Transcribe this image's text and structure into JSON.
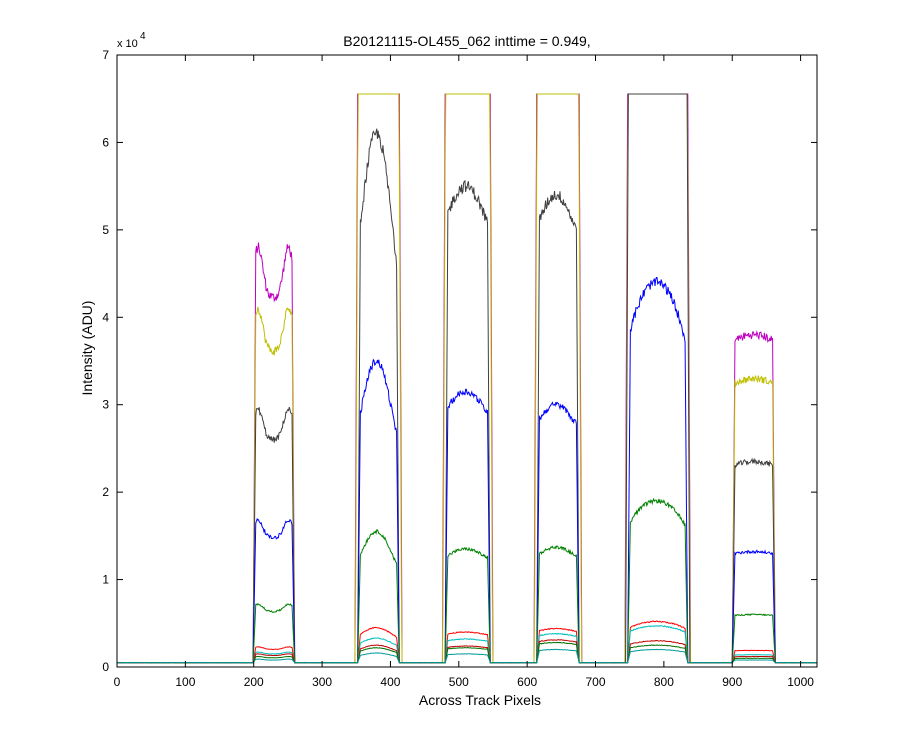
{
  "chart_data": {
    "type": "line",
    "title": "B20121115-OL455_062 inttime = 0.949,",
    "xlabel": "Across Track Pixels",
    "ylabel": "Intensity (ADU)",
    "y_multiplier_label": "x 10",
    "y_multiplier_exponent": "4",
    "xlim": [
      0,
      1024
    ],
    "ylim": [
      0,
      70000
    ],
    "xticks": [
      0,
      100,
      200,
      300,
      400,
      500,
      600,
      700,
      800,
      900,
      1000
    ],
    "xtick_labels": [
      "0",
      "100",
      "200",
      "300",
      "400",
      "500",
      "600",
      "700",
      "800",
      "900",
      "1000"
    ],
    "yticks": [
      0,
      10000,
      20000,
      30000,
      40000,
      50000,
      60000,
      70000
    ],
    "ytick_labels": [
      "0",
      "1",
      "2",
      "3",
      "4",
      "5",
      "6",
      "7"
    ],
    "grid": false,
    "legend": "none",
    "baseline": 500,
    "saturation": 65535,
    "blocks": [
      {
        "start": 197,
        "end": 262,
        "shape": "double_hump"
      },
      {
        "start": 350,
        "end": 415,
        "shape": "peak"
      },
      {
        "start": 478,
        "end": 548,
        "shape": "plateau"
      },
      {
        "start": 612,
        "end": 678,
        "shape": "plateau"
      },
      {
        "start": 745,
        "end": 837,
        "shape": "dome"
      },
      {
        "start": 898,
        "end": 965,
        "shape": "flat"
      }
    ],
    "series": [
      {
        "color": "#bf00bf",
        "values": [
          48000,
          65535,
          65535,
          65535,
          65535,
          38000
        ]
      },
      {
        "color": "#bfbf00",
        "values": [
          41000,
          65535,
          65535,
          65535,
          65535,
          33000
        ]
      },
      {
        "color": "#404040",
        "values": [
          29500,
          61000,
          55000,
          54000,
          65535,
          23500
        ]
      },
      {
        "color": "#0000ff",
        "values": [
          16800,
          35000,
          31500,
          30000,
          44000,
          13200
        ]
      },
      {
        "color": "#008000",
        "values": [
          7200,
          15500,
          13500,
          13700,
          19000,
          6000
        ]
      },
      {
        "color": "#ff0000",
        "values": [
          2300,
          4500,
          4000,
          4400,
          5200,
          1900
        ]
      },
      {
        "color": "#00bfbf",
        "values": [
          1700,
          3300,
          3200,
          3800,
          4700,
          1400
        ]
      },
      {
        "color": "#bf0000",
        "values": [
          1500,
          2500,
          2400,
          3100,
          3000,
          1200
        ]
      },
      {
        "color": "#007000",
        "values": [
          1200,
          2200,
          2200,
          2800,
          2500,
          1000
        ]
      },
      {
        "color": "#009999",
        "values": [
          900,
          1600,
          1500,
          2000,
          2000,
          800
        ]
      }
    ]
  }
}
